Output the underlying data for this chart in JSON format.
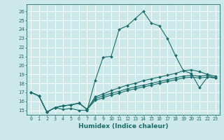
{
  "title": "",
  "xlabel": "Humidex (Indice chaleur)",
  "ylabel": "",
  "bg_color": "#cce8e8",
  "grid_color": "#ffffff",
  "line_color": "#1a6b6b",
  "xlim": [
    -0.5,
    23.5
  ],
  "ylim": [
    14.5,
    26.8
  ],
  "xticks": [
    0,
    1,
    2,
    3,
    4,
    5,
    6,
    7,
    8,
    9,
    10,
    11,
    12,
    13,
    14,
    15,
    16,
    17,
    18,
    19,
    20,
    21,
    22,
    23
  ],
  "yticks": [
    15,
    16,
    17,
    18,
    19,
    20,
    21,
    22,
    23,
    24,
    25,
    26
  ],
  "series": [
    [
      17.0,
      16.6,
      14.8,
      15.3,
      15.1,
      15.2,
      15.0,
      15.0,
      18.3,
      20.9,
      21.0,
      24.0,
      24.4,
      25.2,
      26.0,
      24.7,
      24.4,
      23.0,
      21.1,
      19.4,
      19.1,
      17.5,
      18.7,
      18.6
    ],
    [
      17.0,
      16.6,
      14.8,
      15.3,
      15.5,
      15.6,
      15.8,
      15.1,
      16.5,
      16.8,
      17.2,
      17.5,
      17.8,
      18.0,
      18.3,
      18.5,
      18.7,
      18.9,
      19.1,
      19.4,
      19.5,
      19.3,
      19.0,
      18.8
    ],
    [
      17.0,
      16.6,
      14.8,
      15.3,
      15.5,
      15.6,
      15.8,
      15.1,
      16.3,
      16.6,
      16.9,
      17.1,
      17.4,
      17.6,
      17.8,
      18.0,
      18.2,
      18.4,
      18.6,
      18.8,
      18.9,
      18.8,
      18.9,
      18.6
    ],
    [
      17.0,
      16.6,
      14.8,
      15.3,
      15.5,
      15.6,
      15.8,
      15.1,
      16.1,
      16.4,
      16.7,
      16.9,
      17.2,
      17.4,
      17.6,
      17.8,
      18.0,
      18.2,
      18.4,
      18.6,
      18.7,
      18.6,
      18.7,
      18.6
    ]
  ]
}
